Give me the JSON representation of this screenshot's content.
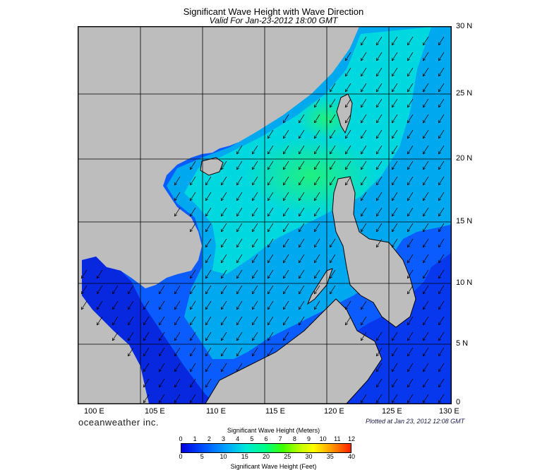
{
  "title": "Significant Wave Height with Wave Direction",
  "subtitle": "Valid For Jan-23-2012 18:00 GMT",
  "lat_labels": [
    "30 N",
    "25 N",
    "20 N",
    "15 N",
    "10 N",
    "5 N",
    "0"
  ],
  "lon_labels": [
    "100 E",
    "105 E",
    "110 E",
    "115 E",
    "120 E",
    "125 E",
    "130 E"
  ],
  "brand": "oceanweather inc.",
  "plotted": "Plotted at Jan 23, 2012 12:08 GMT",
  "colorbar": {
    "title_meters": "Significant Wave Height (Meters)",
    "title_feet": "Significant Wave Height (Feet)",
    "meter_ticks": [
      "0",
      "1",
      "2",
      "3",
      "4",
      "5",
      "6",
      "7",
      "8",
      "9",
      "10",
      "11",
      "12"
    ],
    "feet_ticks": [
      "0",
      "5",
      "10",
      "15",
      "20",
      "25",
      "30",
      "35",
      "40"
    ],
    "colors": [
      "#0000e0",
      "#0050ff",
      "#00a0ff",
      "#00e8d8",
      "#00ff80",
      "#40ff00",
      "#c0ff00",
      "#ffff00",
      "#ffa000",
      "#ff2000"
    ]
  },
  "map": {
    "lon_range": [
      100,
      130
    ],
    "lat_range": [
      0,
      30
    ],
    "land_color": "#bdbdbd",
    "arrow_direction": "southwest"
  }
}
